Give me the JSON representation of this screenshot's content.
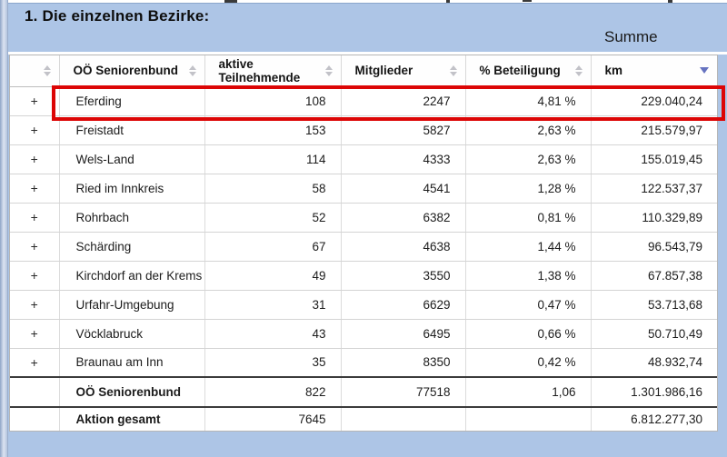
{
  "banner": {
    "title": "1. Die einzelnen Bezirke:",
    "summe_label": "Summe"
  },
  "table": {
    "expand_symbol": "+",
    "columns": {
      "expand": "",
      "bezirk": "OÖ Seniorenbund",
      "aktive": "aktive Teilnehmende",
      "mitglieder": "Mitglieder",
      "beteiligung": "% Beteiligung",
      "km": "km"
    },
    "sort": {
      "column": "km",
      "direction": "desc"
    },
    "rows": [
      {
        "bezirk": "Eferding",
        "aktive": "108",
        "mitglieder": "2247",
        "beteiligung": "4,81 %",
        "km": "229.040,24",
        "highlighted": true
      },
      {
        "bezirk": "Freistadt",
        "aktive": "153",
        "mitglieder": "5827",
        "beteiligung": "2,63 %",
        "km": "215.579,97",
        "highlighted": false
      },
      {
        "bezirk": "Wels-Land",
        "aktive": "114",
        "mitglieder": "4333",
        "beteiligung": "2,63 %",
        "km": "155.019,45",
        "highlighted": false
      },
      {
        "bezirk": "Ried im Innkreis",
        "aktive": "58",
        "mitglieder": "4541",
        "beteiligung": "1,28 %",
        "km": "122.537,37",
        "highlighted": false
      },
      {
        "bezirk": "Rohrbach",
        "aktive": "52",
        "mitglieder": "6382",
        "beteiligung": "0,81 %",
        "km": "110.329,89",
        "highlighted": false
      },
      {
        "bezirk": "Schärding",
        "aktive": "67",
        "mitglieder": "4638",
        "beteiligung": "1,44 %",
        "km": "96.543,79",
        "highlighted": false
      },
      {
        "bezirk": "Kirchdorf an der Krems",
        "aktive": "49",
        "mitglieder": "3550",
        "beteiligung": "1,38 %",
        "km": "67.857,38",
        "highlighted": false
      },
      {
        "bezirk": "Urfahr-Umgebung",
        "aktive": "31",
        "mitglieder": "6629",
        "beteiligung": "0,47 %",
        "km": "53.713,68",
        "highlighted": false
      },
      {
        "bezirk": "Vöcklabruck",
        "aktive": "43",
        "mitglieder": "6495",
        "beteiligung": "0,66 %",
        "km": "50.710,49",
        "highlighted": false
      },
      {
        "bezirk": "Braunau am Inn",
        "aktive": "35",
        "mitglieder": "8350",
        "beteiligung": "0,42 %",
        "km": "48.932,74",
        "highlighted": false
      }
    ],
    "summary_rows": [
      {
        "bezirk": "OÖ Seniorenbund",
        "aktive": "822",
        "mitglieder": "77518",
        "beteiligung": "1,06",
        "km": "1.301.986,16"
      },
      {
        "bezirk": "Aktion gesamt",
        "aktive": "7645",
        "mitglieder": "",
        "beteiligung": "",
        "km": "6.812.277,30"
      }
    ]
  },
  "colors": {
    "background": "#adc5e6",
    "highlight_border": "#dc0505",
    "sort_active_arrow": "#6673c0",
    "sort_inactive_arrow": "#c2c2c8"
  }
}
